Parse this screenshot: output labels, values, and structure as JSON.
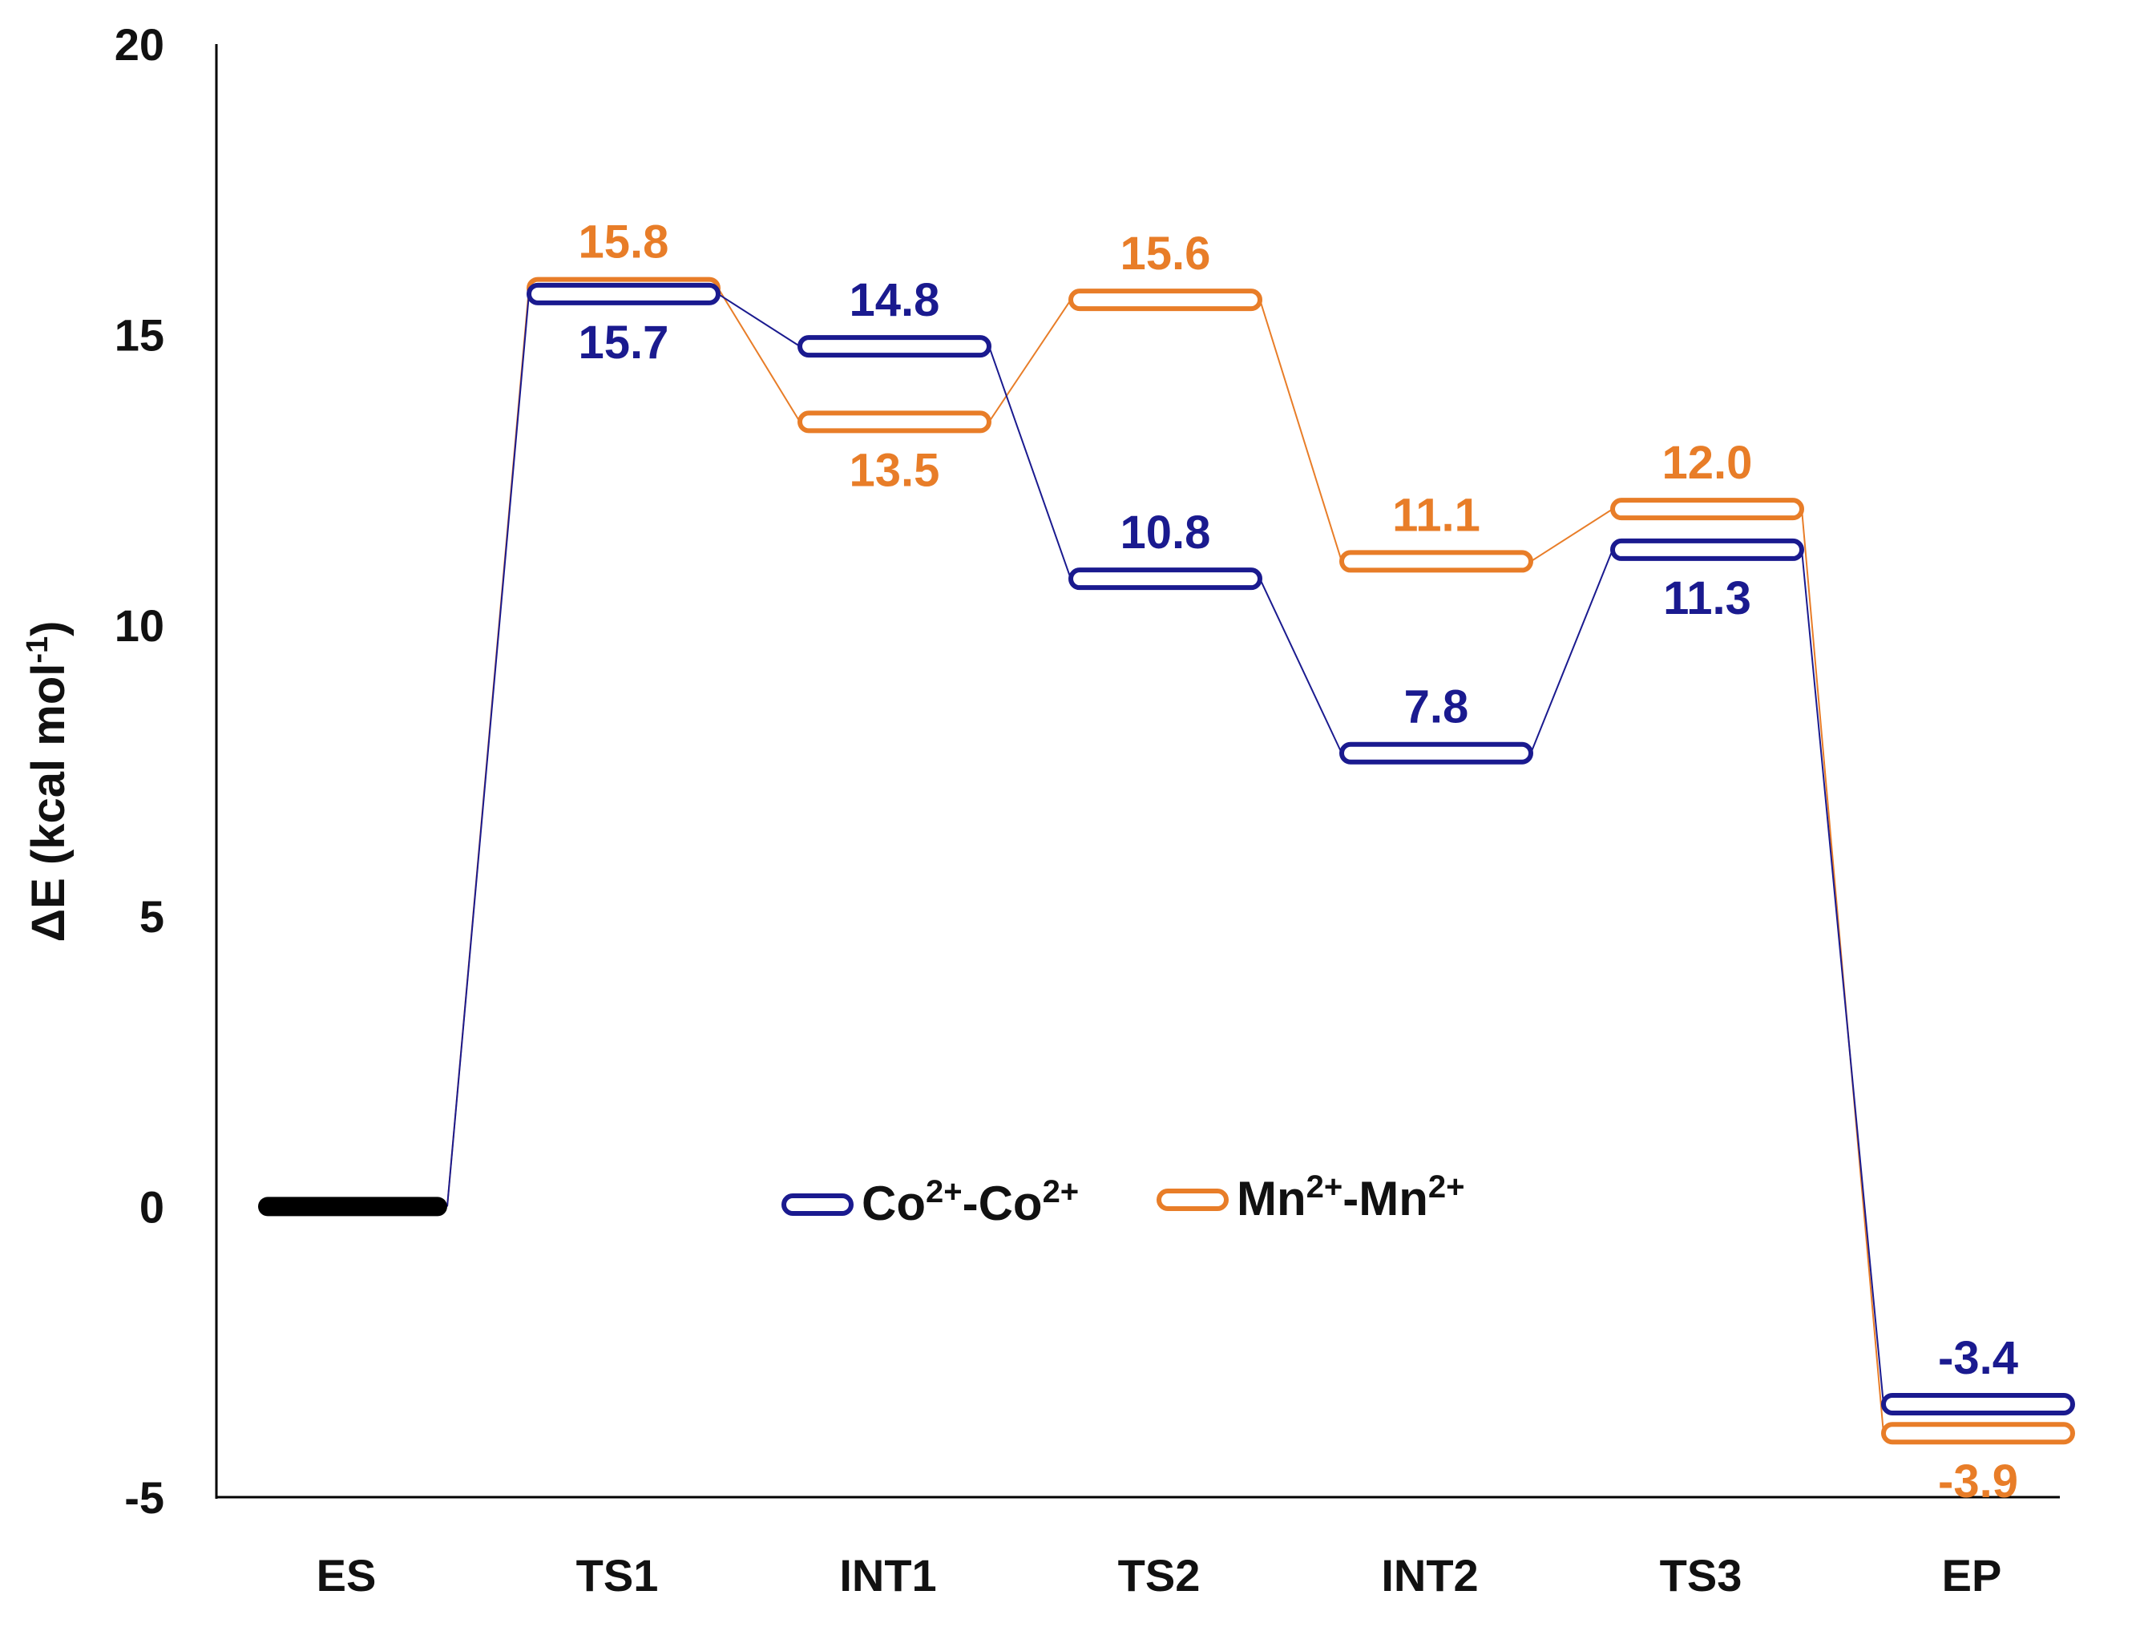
{
  "chart_data": {
    "type": "energy-profile",
    "title": "",
    "ylabel": "ΔE (kcal mol",
    "ylabel_sup": "-1",
    "ylabel_close": ")",
    "ylim": [
      -5,
      20
    ],
    "yticks": [
      "20",
      "15",
      "10",
      "5",
      "0",
      "-5"
    ],
    "ytick_values": [
      20,
      15,
      10,
      5,
      0,
      -5
    ],
    "categories": [
      "ES",
      "TS1",
      "INT1",
      "TS2",
      "INT2",
      "TS3",
      "EP"
    ],
    "reference": {
      "name": "ES",
      "value": 0,
      "color": "#000000"
    },
    "series": [
      {
        "name": "Co2+-Co2+",
        "legend_base1": "Co",
        "legend_sup1": "2+",
        "legend_mid": "-Co",
        "legend_sup2": "2+",
        "color": "#1a1a8f",
        "values": [
          0,
          15.7,
          14.8,
          10.8,
          7.8,
          11.3,
          -3.4
        ],
        "labels": [
          "",
          "15.7",
          "14.8",
          "10.8",
          "7.8",
          "11.3",
          "-3.4"
        ],
        "label_side": [
          "",
          "below",
          "above",
          "above",
          "above",
          "below",
          "above"
        ]
      },
      {
        "name": "Mn2+-Mn2+",
        "legend_base1": "Mn",
        "legend_sup1": "2+",
        "legend_mid": "-Mn",
        "legend_sup2": "2+",
        "color": "#e87d28",
        "values": [
          0,
          15.8,
          13.5,
          15.6,
          11.1,
          12.0,
          -3.9
        ],
        "labels": [
          "",
          "15.8",
          "13.5",
          "15.6",
          "11.1",
          "12.0",
          "-3.9"
        ],
        "label_side": [
          "",
          "above",
          "below",
          "above",
          "above",
          "above",
          "below"
        ]
      }
    ],
    "legend_position": "center"
  }
}
